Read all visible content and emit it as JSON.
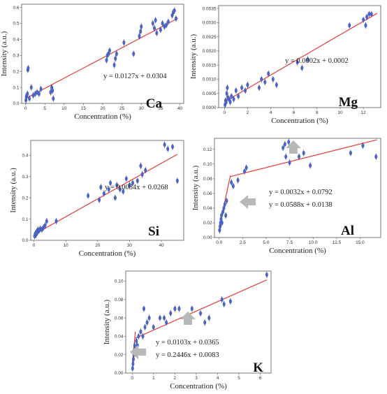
{
  "styles": {
    "point_color": "#4a63c9",
    "error_bar_color": "#333333",
    "fit_color": "#e53b3b",
    "arrow_color": "#b8b8b8"
  },
  "chart_data": [
    {
      "type": "scatter",
      "element": "Ca",
      "xlabel": "Concentration  (%)",
      "ylabel": "Intensity  (a.u.)",
      "xlim": [
        -1,
        41
      ],
      "ylim": [
        0,
        0.62
      ],
      "xticks": [
        "0",
        "5",
        "10",
        "15",
        "20",
        "25",
        "30",
        "35",
        "40"
      ],
      "yticks": [
        "0.0",
        "0.1",
        "0.2",
        "0.3",
        "0.4",
        "0.5",
        "0.6"
      ],
      "points": [
        [
          0.1,
          0.02
        ],
        [
          0.2,
          0.04
        ],
        [
          0.3,
          0.05
        ],
        [
          0.5,
          0.06
        ],
        [
          0.6,
          0.21
        ],
        [
          0.7,
          0.22
        ],
        [
          1,
          0.03
        ],
        [
          1.5,
          0.1
        ],
        [
          2,
          0.05
        ],
        [
          2.5,
          0.06
        ],
        [
          3,
          0.07
        ],
        [
          3.5,
          0.06
        ],
        [
          4,
          0.09
        ],
        [
          6.5,
          0.07
        ],
        [
          6.8,
          0.1
        ],
        [
          7,
          0.08
        ],
        [
          7.2,
          0.03
        ],
        [
          21,
          0.27
        ],
        [
          21.2,
          0.3
        ],
        [
          21.5,
          0.31
        ],
        [
          21.8,
          0.33
        ],
        [
          23,
          0.24
        ],
        [
          23.3,
          0.28
        ],
        [
          23.6,
          0.31
        ],
        [
          25.5,
          0.38
        ],
        [
          28,
          0.31
        ],
        [
          29.5,
          0.42
        ],
        [
          29.8,
          0.45
        ],
        [
          30,
          0.48
        ],
        [
          33,
          0.5
        ],
        [
          33.4,
          0.47
        ],
        [
          33.7,
          0.52
        ],
        [
          34,
          0.44
        ],
        [
          35,
          0.46
        ],
        [
          35.5,
          0.5
        ],
        [
          36,
          0.48
        ],
        [
          36.5,
          0.49
        ],
        [
          37,
          0.51
        ],
        [
          38,
          0.55
        ],
        [
          38.3,
          0.57
        ],
        [
          38.6,
          0.58
        ],
        [
          39,
          0.53
        ]
      ],
      "fits": [
        {
          "equation": "y = 0.0127x + 0.0304",
          "segment": [
            [
              0,
              0.0304
            ],
            [
              39.5,
              0.532
            ]
          ]
        }
      ]
    },
    {
      "type": "scatter",
      "element": "Mg",
      "xlabel": "Concentration  (%)",
      "ylabel": "Intensity  (a.u.)",
      "xlim": [
        -0.5,
        13.5
      ],
      "ylim": [
        0,
        0.0036
      ],
      "xticks": [
        "0",
        "2",
        "4",
        "6",
        "8",
        "10",
        "12"
      ],
      "yticks": [
        "0.0000",
        "0.0005",
        "0.0010",
        "0.0015",
        "0.0020",
        "0.0025",
        "0.0030",
        "0.0035"
      ],
      "points": [
        [
          0.05,
          0.0001
        ],
        [
          0.1,
          0.00025
        ],
        [
          0.15,
          0.0002
        ],
        [
          0.2,
          0.0005
        ],
        [
          0.25,
          0.0007
        ],
        [
          0.3,
          0.00035
        ],
        [
          0.4,
          0.0003
        ],
        [
          0.5,
          0.0002
        ],
        [
          0.6,
          0.0004
        ],
        [
          0.8,
          0.0003
        ],
        [
          1,
          0.0006
        ],
        [
          1.2,
          0.0004
        ],
        [
          1.5,
          0.0007
        ],
        [
          1.8,
          0.0006
        ],
        [
          2,
          0.0008
        ],
        [
          3,
          0.0007
        ],
        [
          3.2,
          0.001
        ],
        [
          3.5,
          0.0009
        ],
        [
          3.8,
          0.0012
        ],
        [
          4.2,
          0.001
        ],
        [
          4.5,
          0.0008
        ],
        [
          6.3,
          0.0016
        ],
        [
          6.7,
          0.0014
        ],
        [
          7.2,
          0.0017
        ],
        [
          10.8,
          0.0029
        ],
        [
          12,
          0.0031
        ],
        [
          12.3,
          0.0032
        ],
        [
          12.5,
          0.0033
        ],
        [
          12.7,
          0.0033
        ],
        [
          12.2,
          0.0029
        ]
      ],
      "fits": [
        {
          "equation": "y = 0.0002x + 0.0002",
          "segment": [
            [
              0,
              0.0002
            ],
            [
              13.2,
              0.00333
            ]
          ]
        }
      ]
    },
    {
      "type": "scatter",
      "element": "Si",
      "xlabel": "Concentration  (%)",
      "ylabel": "Intensity  (a.u.)",
      "xlim": [
        -1,
        47
      ],
      "ylim": [
        0,
        0.47
      ],
      "xticks": [
        "0",
        "10",
        "20",
        "30",
        "40"
      ],
      "yticks": [
        "0.0",
        "0.1",
        "0.2",
        "0.3",
        "0.4"
      ],
      "points": [
        [
          0.2,
          0.02
        ],
        [
          0.4,
          0.03
        ],
        [
          0.6,
          0.025
        ],
        [
          0.8,
          0.04
        ],
        [
          1,
          0.035
        ],
        [
          1.3,
          0.05
        ],
        [
          1.6,
          0.045
        ],
        [
          2,
          0.055
        ],
        [
          2.5,
          0.05
        ],
        [
          3,
          0.06
        ],
        [
          3.5,
          0.07
        ],
        [
          4,
          0.09
        ],
        [
          7,
          0.09
        ],
        [
          17,
          0.21
        ],
        [
          20.5,
          0.19
        ],
        [
          21,
          0.25
        ],
        [
          22,
          0.22
        ],
        [
          23.5,
          0.24
        ],
        [
          24,
          0.27
        ],
        [
          25.5,
          0.2
        ],
        [
          26,
          0.26
        ],
        [
          27,
          0.24
        ],
        [
          28,
          0.23
        ],
        [
          29,
          0.29
        ],
        [
          30,
          0.26
        ],
        [
          31,
          0.27
        ],
        [
          32.5,
          0.28
        ],
        [
          33.5,
          0.35
        ],
        [
          34,
          0.31
        ],
        [
          35,
          0.33
        ],
        [
          41,
          0.45
        ],
        [
          42,
          0.43
        ],
        [
          43.5,
          0.44
        ],
        [
          45,
          0.28
        ]
      ],
      "fits": [
        {
          "equation": "y = 0.0084x + 0.0268",
          "segment": [
            [
              0,
              0.0268
            ],
            [
              45,
              0.4048
            ]
          ]
        }
      ]
    },
    {
      "type": "scatter",
      "element": "Al",
      "xlabel": "Concentration  (%)",
      "ylabel": "Intensity  (a.u.)",
      "xlim": [
        -0.5,
        17.2
      ],
      "ylim": [
        0,
        0.135
      ],
      "xticks": [
        "0.0",
        "2.5",
        "5.0",
        "7.5",
        "10.0",
        "12.5",
        "15.0"
      ],
      "yticks": [
        "0.00",
        "0.02",
        "0.04",
        "0.06",
        "0.08",
        "0.10",
        "0.12"
      ],
      "points": [
        [
          0.05,
          0.01
        ],
        [
          0.1,
          0.015
        ],
        [
          0.15,
          0.02
        ],
        [
          0.2,
          0.025
        ],
        [
          0.25,
          0.03
        ],
        [
          0.3,
          0.02
        ],
        [
          0.4,
          0.035
        ],
        [
          0.5,
          0.04
        ],
        [
          0.6,
          0.045
        ],
        [
          0.7,
          0.03
        ],
        [
          0.8,
          0.05
        ],
        [
          1.3,
          0.075
        ],
        [
          1.5,
          0.07
        ],
        [
          2,
          0.078
        ],
        [
          2.7,
          0.09
        ],
        [
          2.9,
          0.095
        ],
        [
          6.8,
          0.122
        ],
        [
          7,
          0.127
        ],
        [
          7.1,
          0.11
        ],
        [
          7.4,
          0.13
        ],
        [
          7.5,
          0.102
        ],
        [
          8,
          0.12
        ],
        [
          8.5,
          0.11
        ],
        [
          9,
          0.115
        ],
        [
          9.7,
          0.098
        ],
        [
          14,
          0.115
        ],
        [
          15.3,
          0.125
        ],
        [
          16.7,
          0.11
        ]
      ],
      "fits": [
        {
          "equation": "y = 0.0032x + 0.0792",
          "segment": [
            [
              1.2,
              0.083
            ],
            [
              16.8,
              0.133
            ]
          ]
        },
        {
          "equation": "y = 0.0588x + 0.0138",
          "segment": [
            [
              0,
              0.0138
            ],
            [
              1.2,
              0.0844
            ]
          ]
        }
      ]
    },
    {
      "type": "scatter",
      "element": "K",
      "xlabel": "Concentration  (%)",
      "ylabel": "Intensity  (a.u.)",
      "xlim": [
        -0.3,
        6.5
      ],
      "ylim": [
        0,
        0.111
      ],
      "xticks": [
        "0",
        "1",
        "2",
        "3",
        "4",
        "5",
        "6"
      ],
      "yticks": [
        "0.00",
        "0.02",
        "0.04",
        "0.06",
        "0.08",
        "0.10"
      ],
      "points": [
        [
          0.02,
          0.005
        ],
        [
          0.04,
          0.01
        ],
        [
          0.06,
          0.015
        ],
        [
          0.08,
          0.02
        ],
        [
          0.1,
          0.025
        ],
        [
          0.12,
          0.03
        ],
        [
          0.15,
          0.025
        ],
        [
          0.2,
          0.035
        ],
        [
          0.25,
          0.03
        ],
        [
          0.3,
          0.04
        ],
        [
          0.4,
          0.045
        ],
        [
          0.5,
          0.04
        ],
        [
          0.55,
          0.07
        ],
        [
          0.6,
          0.05
        ],
        [
          0.7,
          0.055
        ],
        [
          0.8,
          0.06
        ],
        [
          1,
          0.05
        ],
        [
          1.3,
          0.06
        ],
        [
          1.5,
          0.06
        ],
        [
          1.6,
          0.055
        ],
        [
          1.8,
          0.065
        ],
        [
          2,
          0.07
        ],
        [
          2.2,
          0.07
        ],
        [
          2.8,
          0.07
        ],
        [
          3.2,
          0.065
        ],
        [
          3.4,
          0.055
        ],
        [
          3.6,
          0.06
        ],
        [
          4.2,
          0.08
        ],
        [
          4.3,
          0.075
        ],
        [
          4.6,
          0.078
        ],
        [
          6.3,
          0.107
        ]
      ],
      "fits": [
        {
          "equation": "y = 0.0103x + 0.0365",
          "segment": [
            [
              0.15,
              0.038
            ],
            [
              6.3,
              0.1014
            ]
          ]
        },
        {
          "equation": "y = 0.2446x + 0.0083",
          "segment": [
            [
              0,
              0.0083
            ],
            [
              0.15,
              0.045
            ]
          ]
        }
      ]
    }
  ]
}
